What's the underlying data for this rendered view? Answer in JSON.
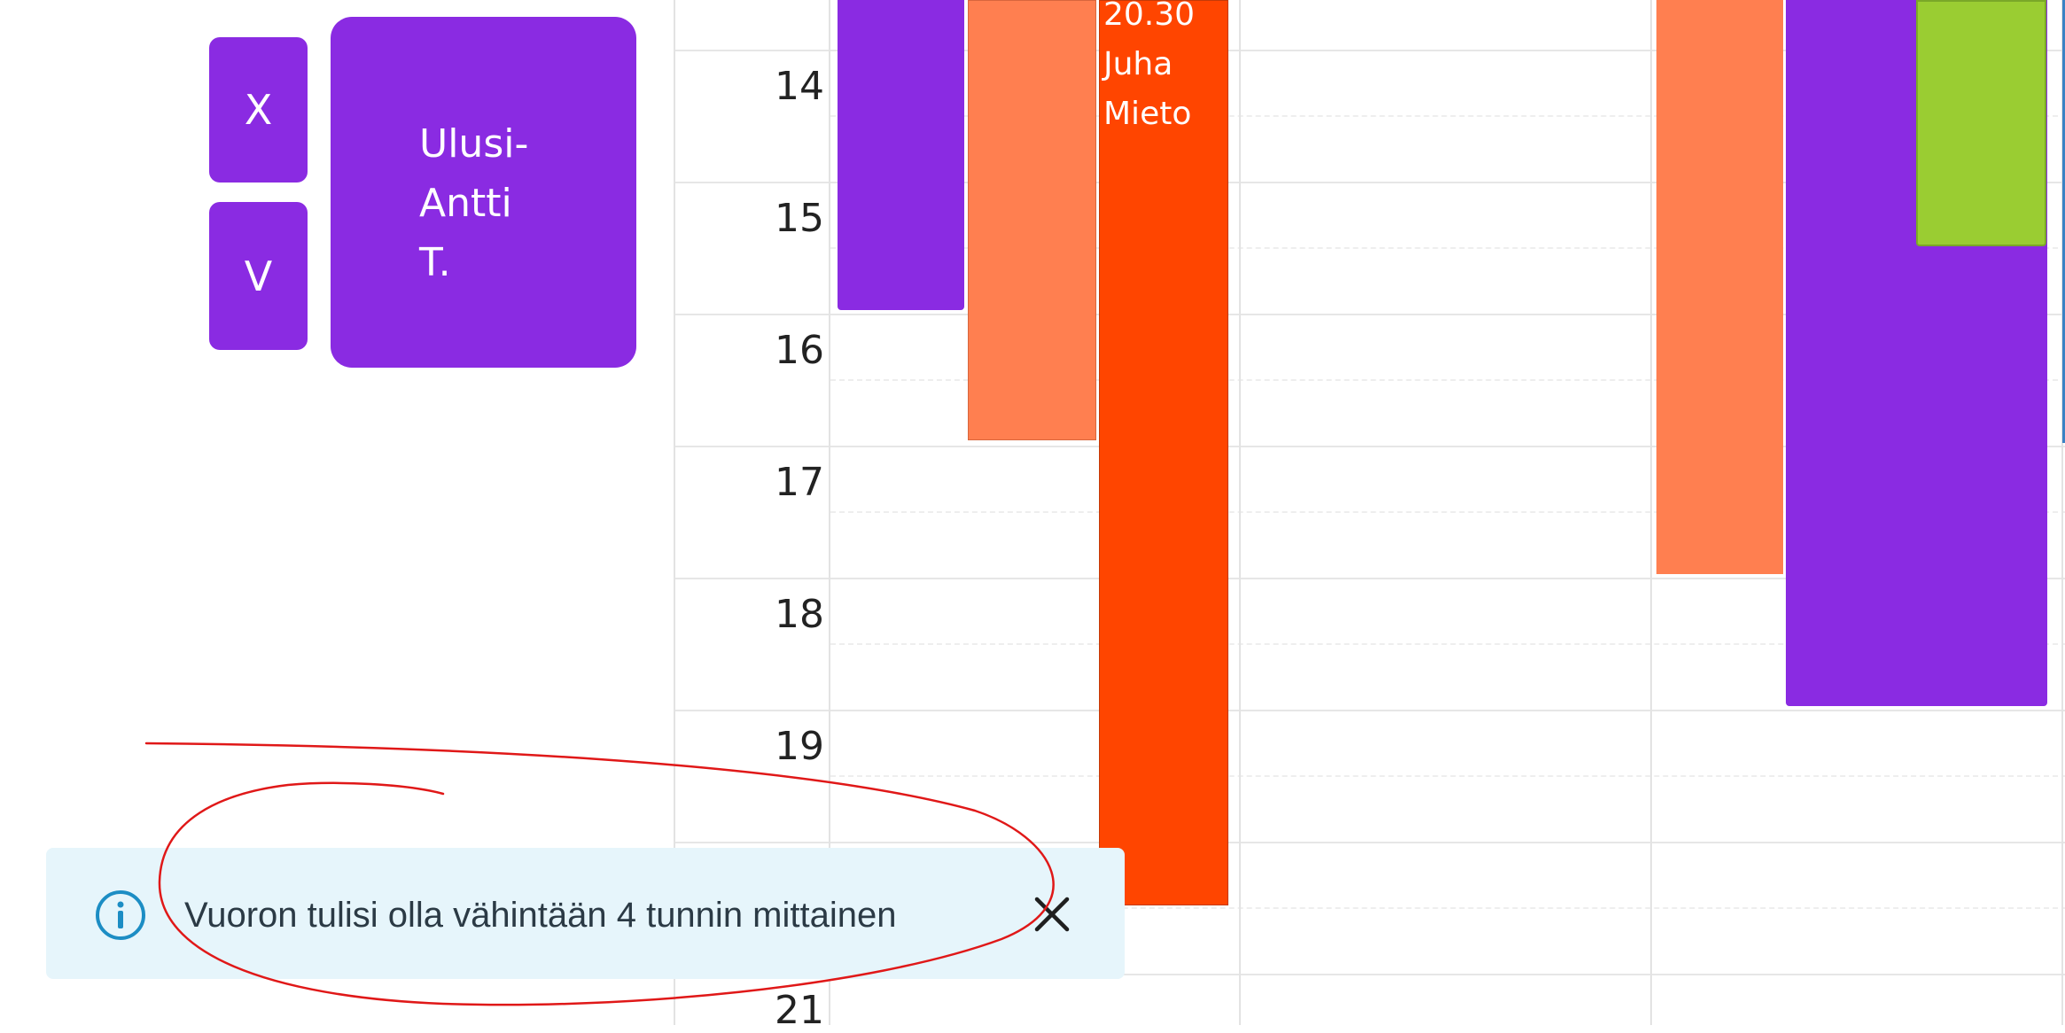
{
  "sidebar": {
    "reject_button_label": "X",
    "approve_button_label": "V",
    "person_card_name": "Ulusi-\nAntti\nT."
  },
  "calendar": {
    "hour_labels": [
      "14",
      "15",
      "16",
      "17",
      "18",
      "19",
      "21"
    ],
    "event_juha": {
      "time": "20.30",
      "first_name": "Juha",
      "last_name": "Mieto"
    }
  },
  "toast": {
    "message": "Vuoron tulisi olla vähintään 4 tunnin mittainen",
    "icon": "info-icon",
    "close_icon": "close-icon"
  },
  "colors": {
    "purple": "#8a2be2",
    "coral": "#ff7f50",
    "orange_red": "#ff4500",
    "green": "#9acd32",
    "toast_bg": "#e6f5fb",
    "annotation_red": "#e01818"
  }
}
